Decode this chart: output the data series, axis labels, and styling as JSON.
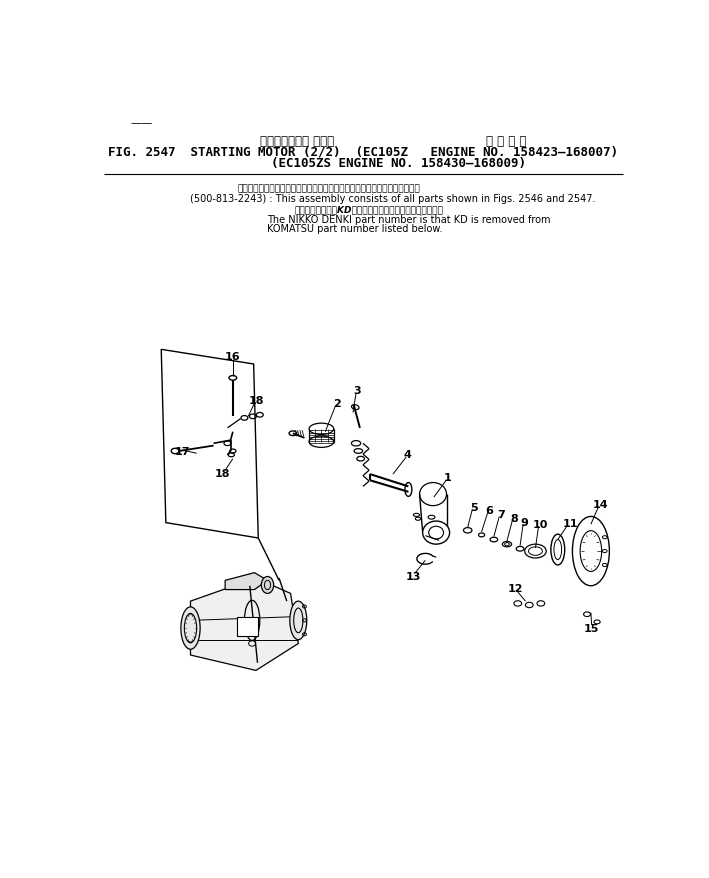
{
  "title_japanese": "スターティング モータ",
  "title_right_japanese": "適 用 号 機",
  "title_line1": "FIG. 2547  STARTING MOTOR (2/2)  (EC105Z   ENGINE NO. 158423–168007)",
  "title_line2": "(EC105ZS ENGINE NO. 158430–168009)",
  "note1_ja": "このアセンブリの構成部品は第２５４６図および第２５４７図を含みます．",
  "note1_en": "(500-813-2243) : This assembly consists of all parts shown in Figs. 2546 and 2547.",
  "note2_ja": "品番のメーカ記号KDを除いたものが日商電機の品番です．",
  "note2_en1": "The NIKKO DENKI part number is that KD is removed from",
  "note2_en2": "KOMATSU part number listed below.",
  "header_mark": "——",
  "bg": "#ffffff"
}
